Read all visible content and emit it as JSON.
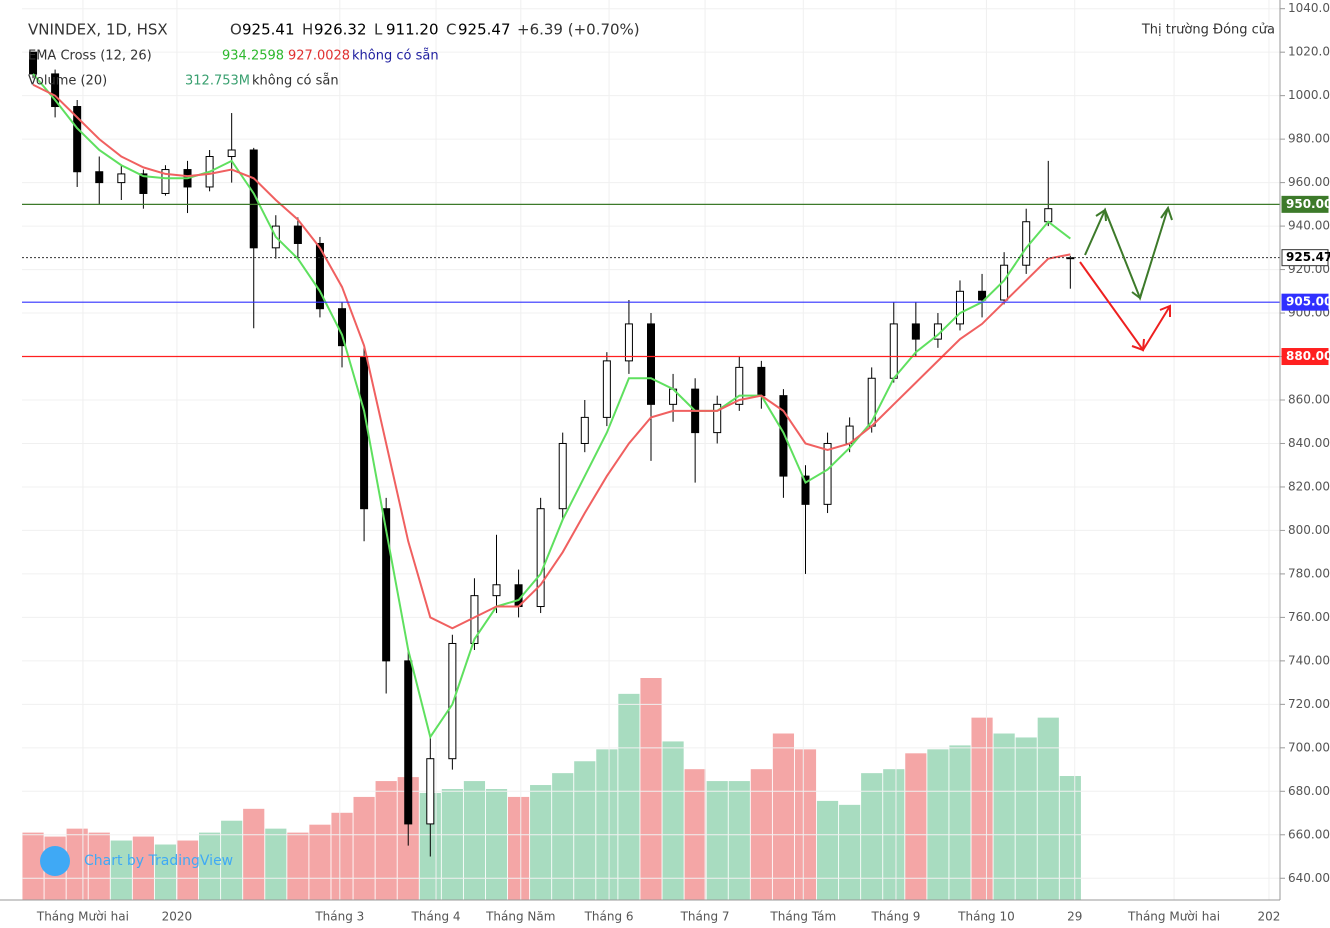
{
  "chart_data": {
    "type": "candlestick",
    "title": "VNINDEX, 1D, HSX",
    "ohlc_header": [
      {
        "label": "O",
        "value": "925.41"
      },
      {
        "label": "H",
        "value": "926.32"
      },
      {
        "label": "L",
        "value": "911.20"
      },
      {
        "label": "C",
        "value": "925.47"
      }
    ],
    "change": "+6.39 (+0.70%)",
    "market_status": "Thị trường Đóng cửa",
    "ema_legend": {
      "name": "EMA Cross (12, 26)",
      "fast": "934.2598",
      "slow": "927.0028",
      "na": "không có sẵn"
    },
    "volume_legend": {
      "name": "Volume (20)",
      "value": "312.753M",
      "na": "không có sẵn"
    },
    "watermark": "Chart by TradingView",
    "xlim": [
      0,
      57
    ],
    "xticks": [
      {
        "value": 2.76,
        "label": "Tháng Mười hai"
      },
      {
        "value": 7.02,
        "label": "2020"
      },
      {
        "value": 14.4,
        "label": "Tháng 3"
      },
      {
        "value": 18.76,
        "label": "Tháng 4"
      },
      {
        "value": 22.6,
        "label": "Tháng Năm"
      },
      {
        "value": 26.6,
        "label": "Tháng 6"
      },
      {
        "value": 30.95,
        "label": "Tháng 7"
      },
      {
        "value": 35.4,
        "label": "Tháng Tám"
      },
      {
        "value": 39.6,
        "label": "Tháng 9"
      },
      {
        "value": 43.7,
        "label": "Tháng 10"
      },
      {
        "value": 47.7,
        "label": "29"
      },
      {
        "value": 52.2,
        "label": "Tháng Mười hai"
      },
      {
        "value": 56.5,
        "label": "202"
      }
    ],
    "ylim": [
      630,
      1044
    ],
    "yticks": [
      {
        "value": 640,
        "label": "640.00"
      },
      {
        "value": 660,
        "label": "660.00"
      },
      {
        "value": 680,
        "label": "680.00"
      },
      {
        "value": 700,
        "label": "700.00"
      },
      {
        "value": 720,
        "label": "720.00"
      },
      {
        "value": 740,
        "label": "740.00"
      },
      {
        "value": 760,
        "label": "760.00"
      },
      {
        "value": 780,
        "label": "780.00"
      },
      {
        "value": 800,
        "label": "800.00"
      },
      {
        "value": 820,
        "label": "820.00"
      },
      {
        "value": 840,
        "label": "840.00"
      },
      {
        "value": 860,
        "label": "860.00"
      },
      {
        "value": 880,
        "label": "880.00"
      },
      {
        "value": 900,
        "label": "900.00"
      },
      {
        "value": 920,
        "label": "920.00"
      },
      {
        "value": 940,
        "label": "940.00"
      },
      {
        "value": 960,
        "label": "960.00"
      },
      {
        "value": 980,
        "label": "980.00"
      },
      {
        "value": 1000,
        "label": "1000.00"
      },
      {
        "value": 1020,
        "label": "1020.00"
      },
      {
        "value": 1040,
        "label": "1040.00"
      }
    ],
    "open": [
      1020,
      1010,
      995,
      965,
      960,
      964,
      955,
      966,
      958,
      972,
      975,
      930,
      940,
      932,
      902,
      880,
      810,
      740,
      665,
      695,
      748,
      770,
      775,
      765,
      810,
      840,
      852,
      878,
      895,
      858,
      865,
      845,
      858,
      875,
      862,
      825,
      812,
      840,
      848,
      870,
      895,
      888,
      895,
      910,
      906,
      922,
      942,
      925.41
    ],
    "high": [
      1020,
      1012,
      998,
      972,
      968,
      966,
      968,
      970,
      975,
      992,
      976,
      945,
      944,
      935,
      905,
      885,
      815,
      745,
      705,
      752,
      778,
      798,
      782,
      815,
      845,
      860,
      882,
      906,
      900,
      872,
      870,
      862,
      880,
      878,
      865,
      830,
      845,
      852,
      875,
      905,
      905,
      900,
      915,
      918,
      928,
      948,
      970,
      926.32
    ],
    "low": [
      1008,
      990,
      958,
      950,
      952,
      948,
      954,
      946,
      956,
      960,
      893,
      925,
      925,
      898,
      875,
      795,
      725,
      655,
      650,
      690,
      745,
      762,
      760,
      762,
      805,
      836,
      848,
      872,
      832,
      850,
      822,
      840,
      855,
      856,
      815,
      780,
      808,
      836,
      845,
      868,
      880,
      884,
      892,
      898,
      904,
      918,
      940,
      911.2
    ],
    "close": [
      1010,
      995,
      965,
      960,
      964,
      955,
      966,
      958,
      972,
      975,
      930,
      940,
      932,
      902,
      885,
      810,
      740,
      665,
      695,
      748,
      770,
      775,
      765,
      810,
      840,
      852,
      878,
      895,
      858,
      865,
      845,
      858,
      875,
      862,
      825,
      812,
      840,
      848,
      870,
      895,
      888,
      895,
      910,
      906,
      922,
      942,
      948,
      925.47
    ],
    "volume": [
      170,
      160,
      180,
      170,
      150,
      160,
      140,
      150,
      170,
      200,
      230,
      180,
      170,
      190,
      220,
      260,
      300,
      310,
      270,
      280,
      300,
      280,
      260,
      290,
      320,
      350,
      380,
      520,
      560,
      400,
      330,
      300,
      300,
      330,
      420,
      380,
      250,
      240,
      320,
      330,
      370,
      380,
      390,
      460,
      420,
      410,
      460,
      312.753
    ],
    "series": [
      {
        "name": "EMA 12",
        "color": "#5fe05f",
        "values": [
          1010,
          998,
          985,
          975,
          968,
          963,
          962,
          962,
          965,
          970,
          955,
          935,
          925,
          910,
          890,
          855,
          800,
          745,
          705,
          720,
          750,
          765,
          768,
          780,
          805,
          825,
          845,
          870,
          870,
          865,
          855,
          855,
          862,
          862,
          845,
          822,
          828,
          838,
          850,
          870,
          882,
          890,
          900,
          905,
          915,
          930,
          942,
          934.2598
        ]
      },
      {
        "name": "EMA 26",
        "color": "#f06060",
        "values": [
          1005,
          1000,
          990,
          980,
          972,
          967,
          964,
          963,
          964,
          966,
          962,
          952,
          943,
          930,
          912,
          885,
          840,
          795,
          760,
          755,
          760,
          765,
          765,
          775,
          790,
          808,
          825,
          840,
          852,
          855,
          855,
          855,
          860,
          862,
          855,
          840,
          837,
          840,
          848,
          858,
          868,
          878,
          888,
          895,
          905,
          915,
          925,
          927.0028
        ]
      }
    ],
    "levels": [
      {
        "value": 950,
        "label": "950.00",
        "color": "#3d7a2a",
        "style": "solid"
      },
      {
        "value": 925.47,
        "label": "925.47",
        "color": "#333333",
        "style": "dotted"
      },
      {
        "value": 905,
        "label": "905.00",
        "color": "#3030ff",
        "style": "solid"
      },
      {
        "value": 880,
        "label": "880.00",
        "color": "#ff2020",
        "style": "solid"
      }
    ],
    "up_color": "#ffffff",
    "down_color": "#000000",
    "volume_up_color": "#a8dcc0",
    "volume_down_color": "#f4a6a6"
  }
}
